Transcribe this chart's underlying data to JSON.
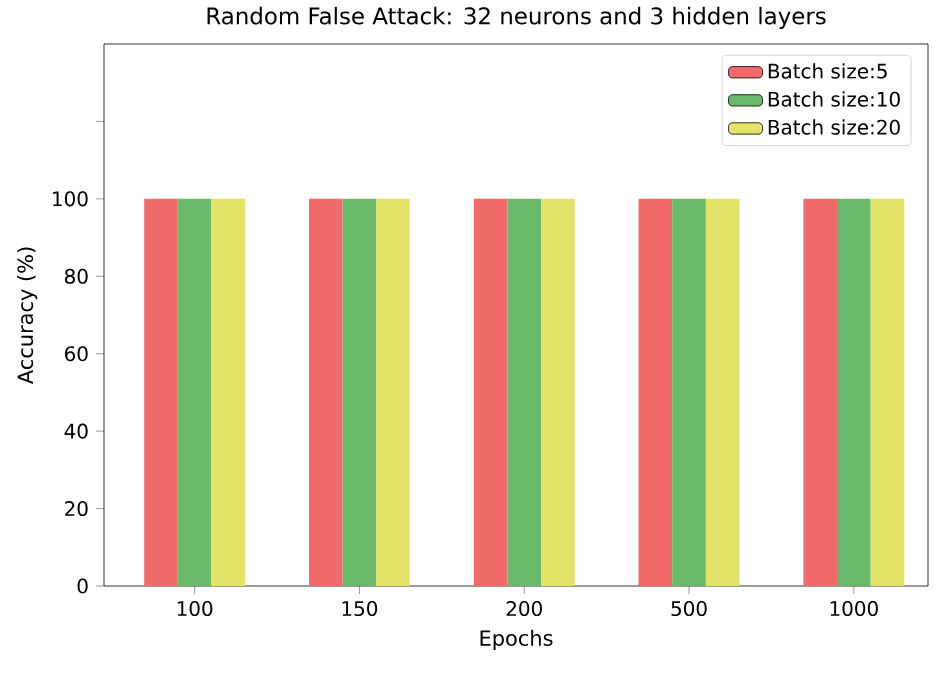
{
  "chart_data": {
    "type": "bar",
    "title": "Random False Attack: 32 neurons and 3 hidden layers",
    "xlabel": "Epochs",
    "ylabel": "Accuracy (%)",
    "categories": [
      "100",
      "150",
      "200",
      "500",
      "1000"
    ],
    "series": [
      {
        "name": "Batch size:5",
        "color": "#f26b6b",
        "values": [
          100,
          100,
          100,
          100,
          100
        ]
      },
      {
        "name": "Batch size:10",
        "color": "#6ab86a",
        "values": [
          100,
          100,
          100,
          100,
          100
        ]
      },
      {
        "name": "Batch size:20",
        "color": "#e3e36a",
        "values": [
          100,
          100,
          100,
          100,
          100
        ]
      }
    ],
    "ylim": [
      0,
      140
    ],
    "yticks": [
      0,
      20,
      40,
      60,
      80,
      100,
      {
        "value": 120,
        "label": null
      }
    ],
    "legend": "top right",
    "grid": false
  }
}
